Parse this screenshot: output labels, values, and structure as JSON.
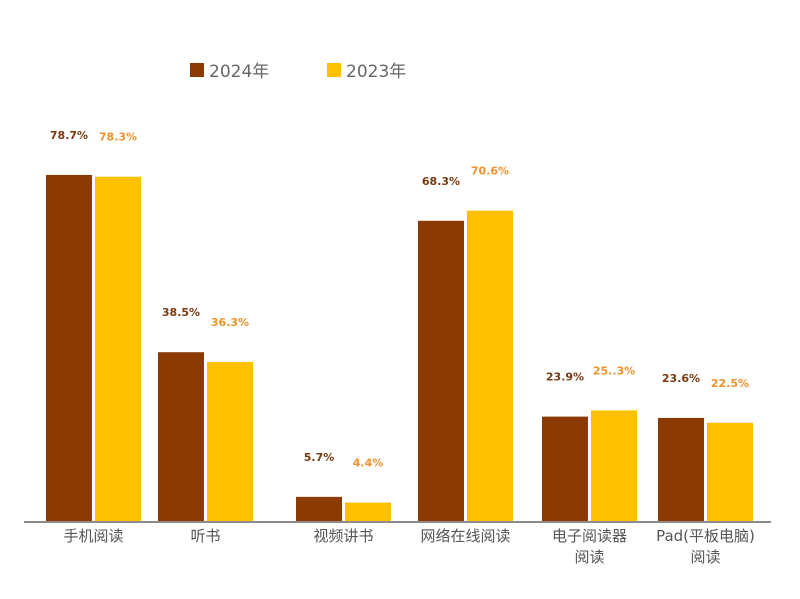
{
  "chart_data": {
    "type": "bar",
    "title": "",
    "xlabel": "",
    "ylabel": "",
    "ylim": [
      0,
      80
    ],
    "grid": false,
    "legend_position": "top",
    "categories": [
      [
        "手机阅读"
      ],
      [
        "听书"
      ],
      [
        "视频讲书"
      ],
      [
        "网络在线阅读"
      ],
      [
        "电子阅读器",
        "阅读"
      ],
      [
        "Pad(平板电脑)",
        "阅读"
      ]
    ],
    "series": [
      {
        "name": "2024年",
        "color": "#8B3A02",
        "label_color": "#7A3A10",
        "values": [
          78.7,
          38.5,
          5.7,
          68.3,
          23.9,
          23.6
        ],
        "labels": [
          "78.7%",
          "38.5%",
          "5.7%",
          "68.3%",
          "23.9%",
          "23.6%"
        ]
      },
      {
        "name": "2023年",
        "color": "#FFC000",
        "label_color": "#F0922B",
        "values": [
          78.3,
          36.3,
          4.4,
          70.6,
          25.3,
          22.5
        ],
        "labels": [
          "78.3%",
          "36.3%",
          "4.4%",
          "70.6%",
          "25..3%",
          "22.5%"
        ]
      }
    ]
  }
}
